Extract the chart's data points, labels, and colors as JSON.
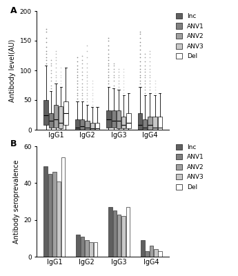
{
  "panel_A_label": "A",
  "panel_B_label": "B",
  "groups": [
    "Inc",
    "ANV1",
    "ANV2",
    "ANV3",
    "Del"
  ],
  "colors": [
    "#606060",
    "#808080",
    "#a0a0a0",
    "#c8c8c8",
    "#ffffff"
  ],
  "x_labels": [
    "IgG1",
    "IgG2",
    "IgG3",
    "IgG4"
  ],
  "ylabel_A": "Antibody level(AU)",
  "ylabel_B": "Antibody seroprevalence",
  "ylim_A": [
    0,
    200
  ],
  "yticks_A": [
    0,
    50,
    100,
    150,
    200
  ],
  "ylim_B": [
    0,
    60
  ],
  "yticks_B": [
    0,
    20,
    40,
    60
  ],
  "bar_data": {
    "IgG1": [
      49,
      45,
      46,
      41,
      54
    ],
    "IgG2": [
      12,
      11,
      9,
      8,
      8
    ],
    "IgG3": [
      27,
      25,
      23,
      22,
      27
    ],
    "IgG4": [
      9,
      3,
      6,
      4,
      3
    ]
  },
  "box_data": {
    "IgG1": {
      "Inc": {
        "q1": 8,
        "median": 25,
        "q3": 50,
        "whislo": 0,
        "whishi": 108,
        "fliers": [
          112,
          118,
          122,
          128,
          132,
          140,
          148,
          155,
          165,
          170
        ]
      },
      "ANV1": {
        "q1": 3,
        "median": 15,
        "q3": 28,
        "whislo": 0,
        "whishi": 65,
        "fliers": [
          70,
          75,
          82,
          88,
          95,
          100,
          108,
          112,
          118
        ]
      },
      "ANV2": {
        "q1": 3,
        "median": 18,
        "q3": 42,
        "whislo": 0,
        "whishi": 78,
        "fliers": [
          82,
          88,
          92,
          98,
          105,
          112,
          118,
          122,
          128,
          132
        ]
      },
      "ANV3": {
        "q1": 2,
        "median": 12,
        "q3": 40,
        "whislo": 0,
        "whishi": 72,
        "fliers": [
          78,
          82,
          88,
          92,
          98,
          105
        ]
      },
      "Del": {
        "q1": 8,
        "median": 28,
        "q3": 48,
        "whislo": 0,
        "whishi": 105,
        "fliers": [
          112,
          118,
          125
        ]
      }
    },
    "IgG2": {
      "Inc": {
        "q1": 0,
        "median": 3,
        "q3": 18,
        "whislo": 0,
        "whishi": 48,
        "fliers": [
          52,
          58,
          62,
          68,
          72,
          78,
          82,
          88,
          92,
          98,
          102,
          108,
          115,
          122
        ]
      },
      "ANV1": {
        "q1": 0,
        "median": 6,
        "q3": 18,
        "whislo": 0,
        "whishi": 48,
        "fliers": [
          52,
          58,
          62,
          68,
          72,
          78,
          85,
          92,
          98,
          105,
          112,
          118,
          125
        ]
      },
      "ANV2": {
        "q1": 0,
        "median": 3,
        "q3": 15,
        "whislo": 0,
        "whishi": 42,
        "fliers": [
          48,
          52,
          58,
          62,
          68,
          72,
          78,
          82,
          88,
          92,
          98,
          105,
          112,
          122,
          132,
          142
        ]
      },
      "ANV3": {
        "q1": 0,
        "median": 2,
        "q3": 12,
        "whislo": 0,
        "whishi": 38,
        "fliers": [
          42,
          48,
          52,
          58,
          62,
          68,
          72,
          78,
          82
        ]
      },
      "Del": {
        "q1": 0,
        "median": 2,
        "q3": 12,
        "whislo": 0,
        "whishi": 38,
        "fliers": [
          42,
          48,
          52,
          58,
          62
        ]
      }
    },
    "IgG3": {
      "Inc": {
        "q1": 3,
        "median": 18,
        "q3": 32,
        "whislo": 0,
        "whishi": 72,
        "fliers": [
          78,
          82,
          88,
          92,
          98,
          102,
          108,
          112,
          118,
          122,
          128,
          135,
          142,
          150,
          155
        ]
      },
      "ANV1": {
        "q1": 3,
        "median": 15,
        "q3": 32,
        "whislo": 0,
        "whishi": 70,
        "fliers": [
          75,
          82,
          88,
          92,
          98,
          102,
          108,
          112
        ]
      },
      "ANV2": {
        "q1": 2,
        "median": 15,
        "q3": 32,
        "whislo": 0,
        "whishi": 68,
        "fliers": [
          72,
          78,
          82,
          88,
          92,
          98,
          102
        ]
      },
      "ANV3": {
        "q1": 2,
        "median": 8,
        "q3": 22,
        "whislo": 0,
        "whishi": 58,
        "fliers": [
          62,
          68,
          72,
          78,
          82,
          88,
          92,
          98,
          102
        ]
      },
      "Del": {
        "q1": 2,
        "median": 12,
        "q3": 28,
        "whislo": 0,
        "whishi": 62,
        "fliers": [
          68,
          72,
          78,
          82,
          88,
          92,
          98,
          102,
          108
        ]
      }
    },
    "IgG4": {
      "Inc": {
        "q1": 0,
        "median": 8,
        "q3": 28,
        "whislo": 0,
        "whishi": 72,
        "fliers": [
          78,
          82,
          88,
          92,
          98,
          102,
          108,
          115,
          122,
          128,
          135,
          142,
          148,
          155,
          162,
          165
        ]
      },
      "ANV1": {
        "q1": 0,
        "median": 3,
        "q3": 18,
        "whislo": 0,
        "whishi": 58,
        "fliers": [
          62,
          68,
          72,
          78,
          82,
          88,
          92,
          98,
          102,
          108,
          115,
          122,
          128
        ]
      },
      "ANV2": {
        "q1": 0,
        "median": 8,
        "q3": 22,
        "whislo": 0,
        "whishi": 62,
        "fliers": [
          68,
          72,
          78,
          82,
          88,
          92,
          98,
          102,
          108,
          115,
          122,
          128,
          132
        ]
      },
      "ANV3": {
        "q1": 0,
        "median": 3,
        "q3": 22,
        "whislo": 0,
        "whishi": 58,
        "fliers": [
          62,
          68,
          72,
          78,
          82
        ]
      },
      "Del": {
        "q1": 0,
        "median": 3,
        "q3": 22,
        "whislo": 0,
        "whishi": 62,
        "fliers": [
          68,
          72,
          78
        ]
      }
    }
  }
}
